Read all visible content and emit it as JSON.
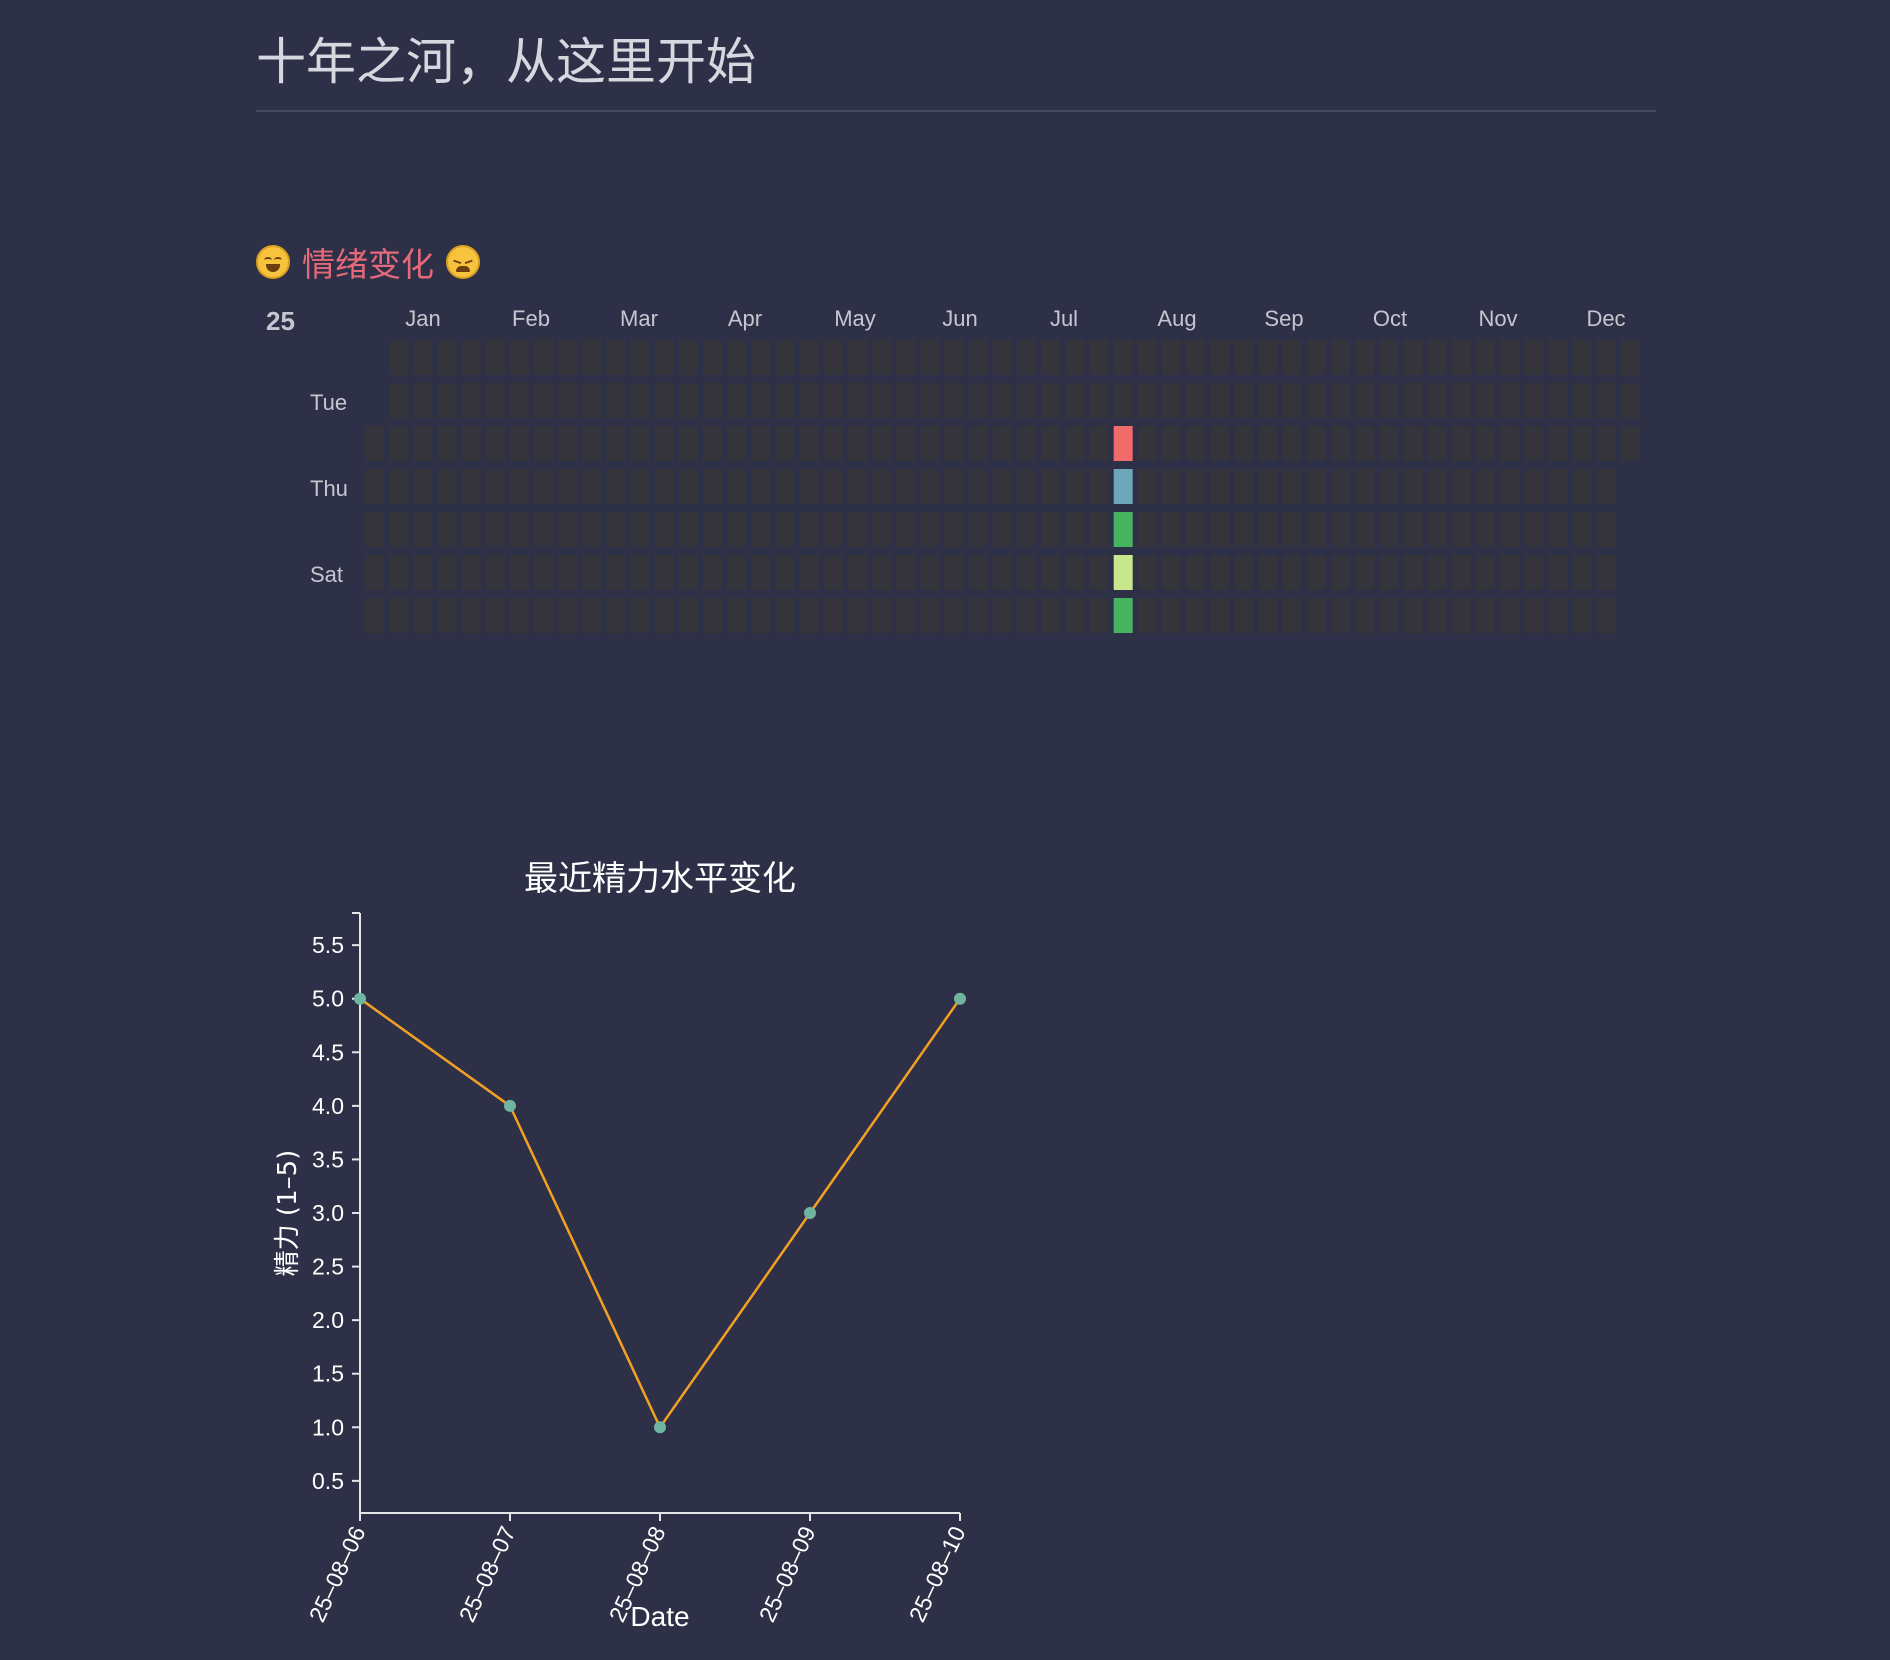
{
  "page": {
    "title": "十年之河，从这里开始"
  },
  "mood_section": {
    "heading": "情绪变化",
    "left_icon": "grinning-squinting-face-icon",
    "right_icon": "tired-face-icon"
  },
  "colors": {
    "background": "#2e3047",
    "empty_cell": "#34343a",
    "line": "#f2a122",
    "point": "#6fb5a0",
    "axis": "#e6e6ea",
    "mood_red": "#f26b6b",
    "mood_blue": "#6ea8b8",
    "mood_green": "#45b35f",
    "mood_light_green": "#c8e68c"
  },
  "chart_data": [
    {
      "type": "heatmap",
      "year_label": "25",
      "months": [
        "Jan",
        "Feb",
        "Mar",
        "Apr",
        "May",
        "Jun",
        "Jul",
        "Aug",
        "Sep",
        "Oct",
        "Nov",
        "Dec"
      ],
      "weekday_labels": [
        "",
        "Tue",
        "",
        "Thu",
        "",
        "Sat",
        ""
      ],
      "weeks": 53,
      "first_week_start_row": 2,
      "last_week_end_row": 2,
      "filled_week": 31,
      "filled_cells": [
        {
          "row": 2,
          "color": "#f26b6b"
        },
        {
          "row": 3,
          "color": "#6ea8b8"
        },
        {
          "row": 4,
          "color": "#45b35f"
        },
        {
          "row": 5,
          "color": "#c8e68c"
        },
        {
          "row": 6,
          "color": "#45b35f"
        }
      ]
    },
    {
      "type": "line",
      "title": "最近精力水平变化",
      "xlabel": "Date",
      "ylabel": "精力 (1–5)",
      "x": [
        "25–08–06",
        "25–08–07",
        "25–08–08",
        "25–08–09",
        "25–08–10"
      ],
      "y": [
        5,
        4,
        1,
        3,
        5
      ],
      "ylim": [
        0.2,
        5.8
      ],
      "yticks": [
        "0.5",
        "1.0",
        "1.5",
        "2.0",
        "2.5",
        "3.0",
        "3.5",
        "4.0",
        "4.5",
        "5.0",
        "5.5"
      ],
      "grid": false,
      "markers": true
    }
  ]
}
